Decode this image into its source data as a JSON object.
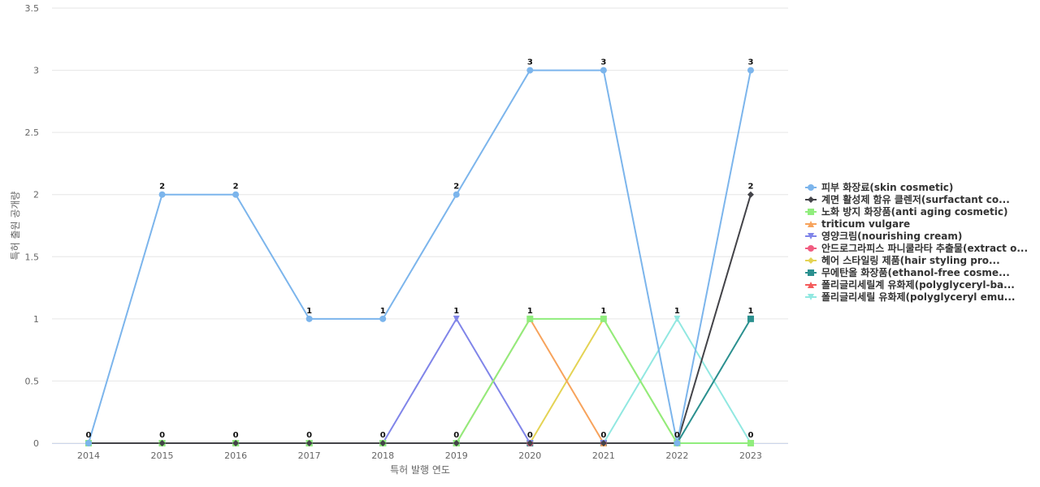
{
  "chart_data": {
    "type": "line",
    "title": "",
    "xlabel": "특허 발행 연도",
    "ylabel": "특허 출원 공개량",
    "x": [
      "2014",
      "2015",
      "2016",
      "2017",
      "2018",
      "2019",
      "2020",
      "2021",
      "2022",
      "2023"
    ],
    "y_ticks": [
      "0",
      "0.5",
      "1",
      "1.5",
      "2",
      "2.5",
      "3",
      "3.5"
    ],
    "ylim": [
      0,
      3.5
    ],
    "grid": true,
    "legend_position": "right",
    "series": [
      {
        "name": "피부 화장료(skin cosmetic)",
        "color": "#7cb5ec",
        "marker": "circle",
        "values": [
          0,
          2,
          2,
          1,
          1,
          2,
          3,
          3,
          0,
          3
        ]
      },
      {
        "name": "계면 활성제 함유 클렌저(surfactant co...",
        "color": "#434348",
        "marker": "diamond",
        "values": [
          0,
          0,
          0,
          0,
          0,
          0,
          0,
          0,
          0,
          2
        ]
      },
      {
        "name": "노화 방지 화장품(anti aging cosmetic)",
        "color": "#90ed7d",
        "marker": "square",
        "values": [
          0,
          0,
          0,
          0,
          0,
          0,
          1,
          1,
          0,
          0
        ]
      },
      {
        "name": "triticum vulgare",
        "color": "#f7a35c",
        "marker": "triangle",
        "values": [
          0,
          0,
          0,
          0,
          0,
          0,
          1,
          0,
          0,
          0
        ]
      },
      {
        "name": "영양크림(nourishing cream)",
        "color": "#8085e9",
        "marker": "triangle-down",
        "values": [
          0,
          0,
          0,
          0,
          0,
          1,
          0,
          0,
          0,
          0
        ]
      },
      {
        "name": "안드로그라피스 파니쿨라타 추출물(extract o...",
        "color": "#f15c80",
        "marker": "circle",
        "values": [
          0,
          0,
          0,
          0,
          0,
          0,
          0,
          0,
          0,
          0
        ]
      },
      {
        "name": "헤어 스타일링 제품(hair styling pro...",
        "color": "#e4d354",
        "marker": "diamond",
        "values": [
          0,
          0,
          0,
          0,
          0,
          0,
          0,
          1,
          0,
          0
        ]
      },
      {
        "name": "무에탄올 화장품(ethanol-free cosme...",
        "color": "#2b908f",
        "marker": "square",
        "values": [
          0,
          0,
          0,
          0,
          0,
          0,
          0,
          0,
          0,
          1
        ]
      },
      {
        "name": "폴리글리세릴계 유화제(polyglyceryl-ba...",
        "color": "#f45b5b",
        "marker": "triangle",
        "values": [
          0,
          0,
          0,
          0,
          0,
          0,
          0,
          0,
          0,
          0
        ]
      },
      {
        "name": "폴리글리세릴 유화제(polyglyceryl emu...",
        "color": "#91e8e1",
        "marker": "triangle-down",
        "values": [
          0,
          0,
          0,
          0,
          0,
          0,
          0,
          0,
          1,
          0
        ]
      }
    ],
    "data_labels": [
      {
        "series": 0,
        "index": 0,
        "text": "0"
      },
      {
        "series": 0,
        "index": 1,
        "text": "2"
      },
      {
        "series": 0,
        "index": 2,
        "text": "2"
      },
      {
        "series": 0,
        "index": 3,
        "text": "1"
      },
      {
        "series": 0,
        "index": 4,
        "text": "1"
      },
      {
        "series": 0,
        "index": 5,
        "text": "2"
      },
      {
        "series": 0,
        "index": 6,
        "text": "3"
      },
      {
        "series": 0,
        "index": 7,
        "text": "3"
      },
      {
        "series": 0,
        "index": 8,
        "text": "0"
      },
      {
        "series": 0,
        "index": 9,
        "text": "3"
      },
      {
        "series": 1,
        "index": 1,
        "text": "0"
      },
      {
        "series": 1,
        "index": 2,
        "text": "0"
      },
      {
        "series": 1,
        "index": 3,
        "text": "0"
      },
      {
        "series": 1,
        "index": 4,
        "text": "0"
      },
      {
        "series": 1,
        "index": 5,
        "text": "0"
      },
      {
        "series": 1,
        "index": 6,
        "text": "0"
      },
      {
        "series": 1,
        "index": 7,
        "text": "0"
      },
      {
        "series": 1,
        "index": 9,
        "text": "2"
      },
      {
        "series": 4,
        "index": 5,
        "text": "1"
      },
      {
        "series": 2,
        "index": 6,
        "text": "1"
      },
      {
        "series": 6,
        "index": 7,
        "text": "1"
      },
      {
        "series": 9,
        "index": 8,
        "text": "1"
      },
      {
        "series": 7,
        "index": 9,
        "text": "1"
      },
      {
        "series": 2,
        "index": 9,
        "text": "0"
      }
    ]
  }
}
